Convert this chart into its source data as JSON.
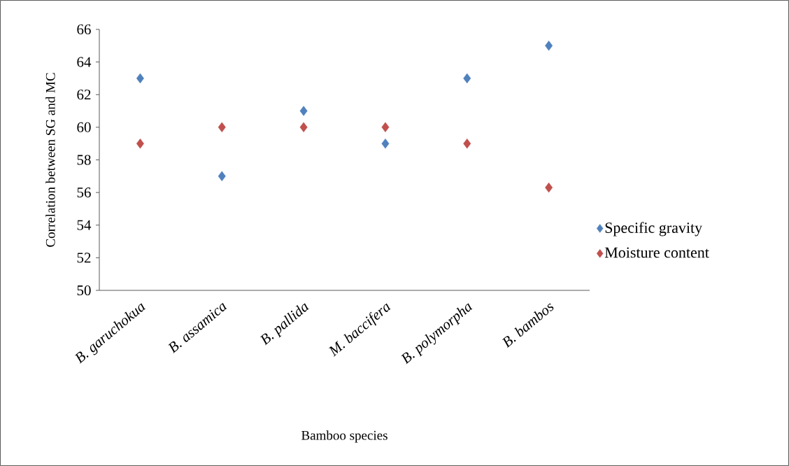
{
  "chart_data": {
    "type": "scatter",
    "xlabel": "Bamboo species",
    "ylabel": "Correlation between SG and MC",
    "categories": [
      "B. garuchokua",
      "B. assamica",
      "B. pallida",
      "M. baccifera",
      "B. polymorpha",
      "B. bambos"
    ],
    "series": [
      {
        "name": "Specific gravity",
        "color": "#4f81bd",
        "values": [
          63,
          57,
          61,
          59,
          63,
          65
        ]
      },
      {
        "name": "Moisture content",
        "color": "#c0504d",
        "values": [
          59,
          60,
          60,
          60,
          59,
          56.3
        ]
      }
    ],
    "ylim": [
      50,
      66
    ],
    "yticks": [
      50,
      52,
      54,
      56,
      58,
      60,
      62,
      64,
      66
    ],
    "marker": "diamond",
    "legend": "right",
    "grid": false
  }
}
